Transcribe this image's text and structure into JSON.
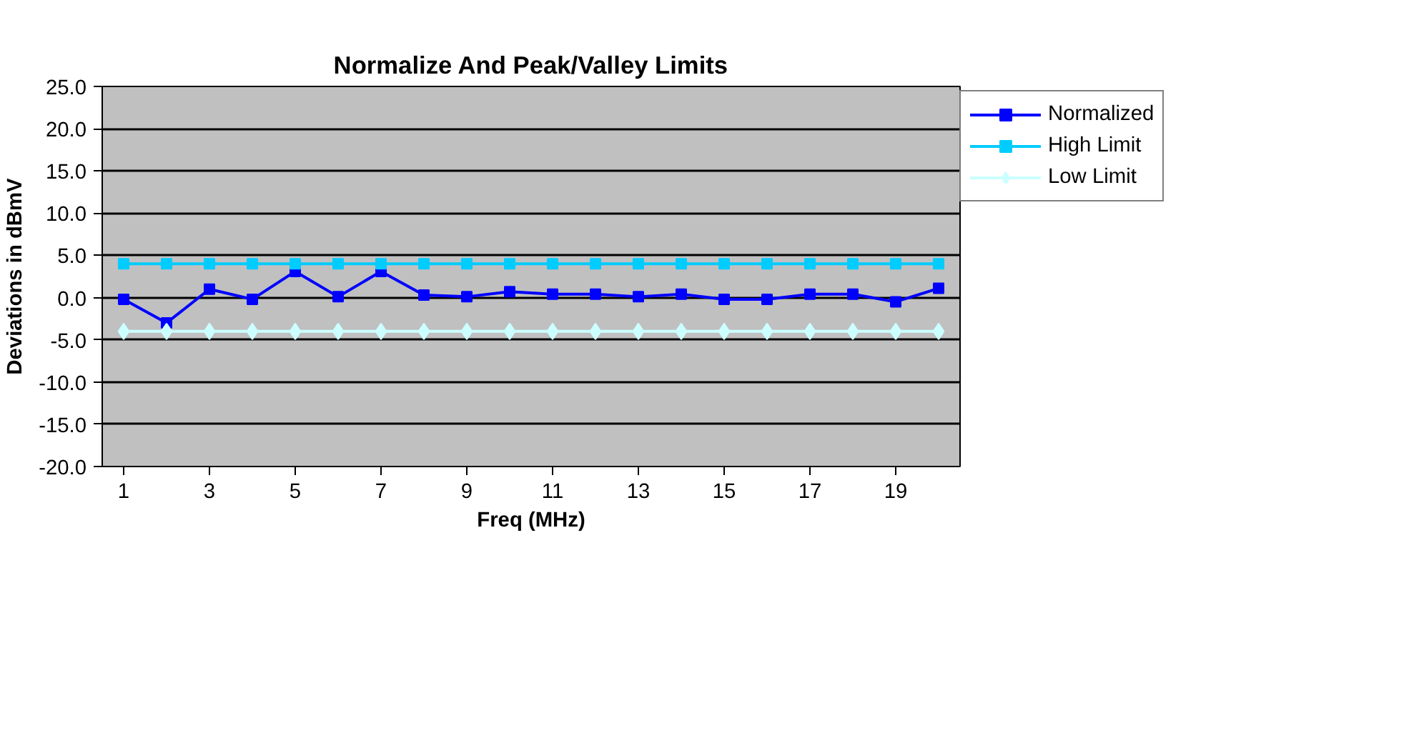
{
  "chart_data": {
    "type": "line",
    "title": "Normalize And Peak/Valley Limits",
    "xlabel": "Freq (MHz)",
    "ylabel": "Deviations in dBmV",
    "x": [
      1,
      2,
      3,
      4,
      5,
      6,
      7,
      8,
      9,
      10,
      11,
      12,
      13,
      14,
      15,
      16,
      17,
      18,
      19,
      20
    ],
    "xlim": [
      0.5,
      20.5
    ],
    "xticks": [
      1,
      3,
      5,
      7,
      9,
      11,
      13,
      15,
      17,
      19
    ],
    "series": [
      {
        "name": "Normalized",
        "color": "#0000ff",
        "marker": "square",
        "values": [
          -0.2,
          -3.0,
          1.0,
          -0.2,
          3.1,
          0.1,
          3.1,
          0.3,
          0.1,
          0.7,
          0.4,
          0.4,
          0.1,
          0.4,
          -0.2,
          -0.2,
          0.4,
          0.4,
          -0.5,
          1.1
        ]
      },
      {
        "name": "High Limit",
        "color": "#00ccff",
        "marker": "square",
        "values": [
          4.0,
          4.0,
          4.0,
          4.0,
          4.0,
          4.0,
          4.0,
          4.0,
          4.0,
          4.0,
          4.0,
          4.0,
          4.0,
          4.0,
          4.0,
          4.0,
          4.0,
          4.0,
          4.0,
          4.0
        ]
      },
      {
        "name": "Low Limit",
        "color": "#ccffff",
        "marker": "diamond",
        "values": [
          -4.0,
          -4.0,
          -4.0,
          -4.0,
          -4.0,
          -4.0,
          -4.0,
          -4.0,
          -4.0,
          -4.0,
          -4.0,
          -4.0,
          -4.0,
          -4.0,
          -4.0,
          -4.0,
          -4.0,
          -4.0,
          -4.0,
          -4.0
        ]
      }
    ],
    "ylim": [
      -20,
      25
    ],
    "yticks": [
      {
        "value": -20,
        "label": "-20.0"
      },
      {
        "value": -15,
        "label": "-15.0"
      },
      {
        "value": -10,
        "label": "-10.0"
      },
      {
        "value": -5,
        "label": "-5.0"
      },
      {
        "value": 0,
        "label": "0.0"
      },
      {
        "value": 5,
        "label": "5.0"
      },
      {
        "value": 10,
        "label": "10.0"
      },
      {
        "value": 15,
        "label": "15.0"
      },
      {
        "value": 20,
        "label": "20.0"
      },
      {
        "value": 25,
        "label": "25.0"
      }
    ],
    "grid": "y",
    "legend": "right",
    "line_style": "solid"
  }
}
